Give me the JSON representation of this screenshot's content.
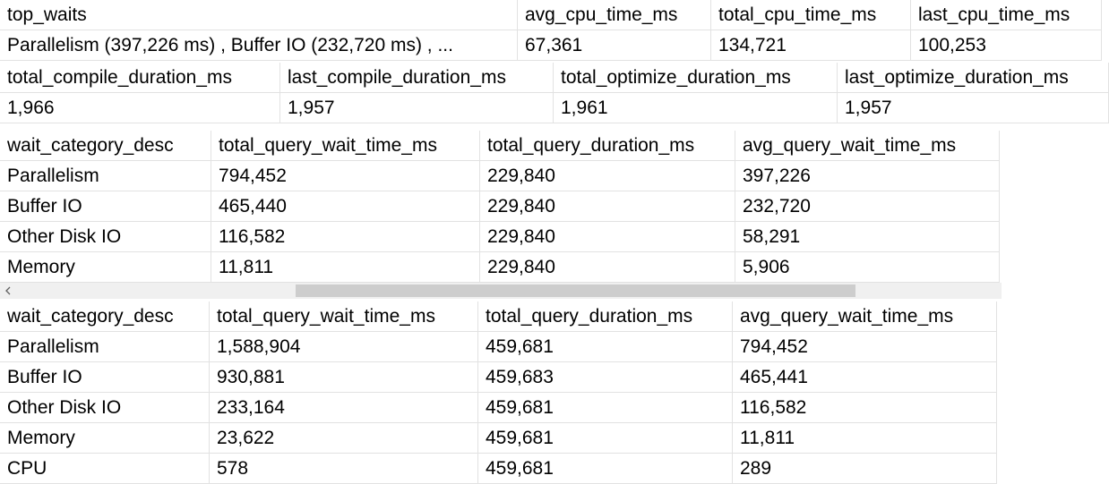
{
  "tables": [
    {
      "columns": [
        "top_waits",
        "avg_cpu_time_ms",
        "total_cpu_time_ms",
        "last_cpu_time_ms"
      ],
      "rows": [
        [
          "Parallelism (397,226 ms) , Buffer IO (232,720 ms) , ...",
          "67,361",
          "134,721",
          "100,253"
        ]
      ]
    },
    {
      "columns": [
        "total_compile_duration_ms",
        "last_compile_duration_ms",
        "total_optimize_duration_ms",
        "last_optimize_duration_ms"
      ],
      "rows": [
        [
          "1,966",
          "1,957",
          "1,961",
          "1,957"
        ]
      ]
    },
    {
      "columns": [
        "wait_category_desc",
        "total_query_wait_time_ms",
        "total_query_duration_ms",
        "avg_query_wait_time_ms"
      ],
      "rows": [
        [
          "Parallelism",
          "794,452",
          "229,840",
          "397,226"
        ],
        [
          "Buffer IO",
          "465,440",
          "229,840",
          "232,720"
        ],
        [
          "Other Disk IO",
          "116,582",
          "229,840",
          "58,291"
        ],
        [
          "Memory",
          "11,811",
          "229,840",
          "5,906"
        ]
      ]
    },
    {
      "columns": [
        "wait_category_desc",
        "total_query_wait_time_ms",
        "total_query_duration_ms",
        "avg_query_wait_time_ms"
      ],
      "rows": [
        [
          "Parallelism",
          "1,588,904",
          "459,681",
          "794,452"
        ],
        [
          "Buffer IO",
          "930,881",
          "459,683",
          "465,441"
        ],
        [
          "Other Disk IO",
          "233,164",
          "459,681",
          "116,582"
        ],
        [
          "Memory",
          "23,622",
          "459,681",
          "11,811"
        ],
        [
          "CPU",
          "578",
          "459,681",
          "289"
        ]
      ]
    }
  ]
}
